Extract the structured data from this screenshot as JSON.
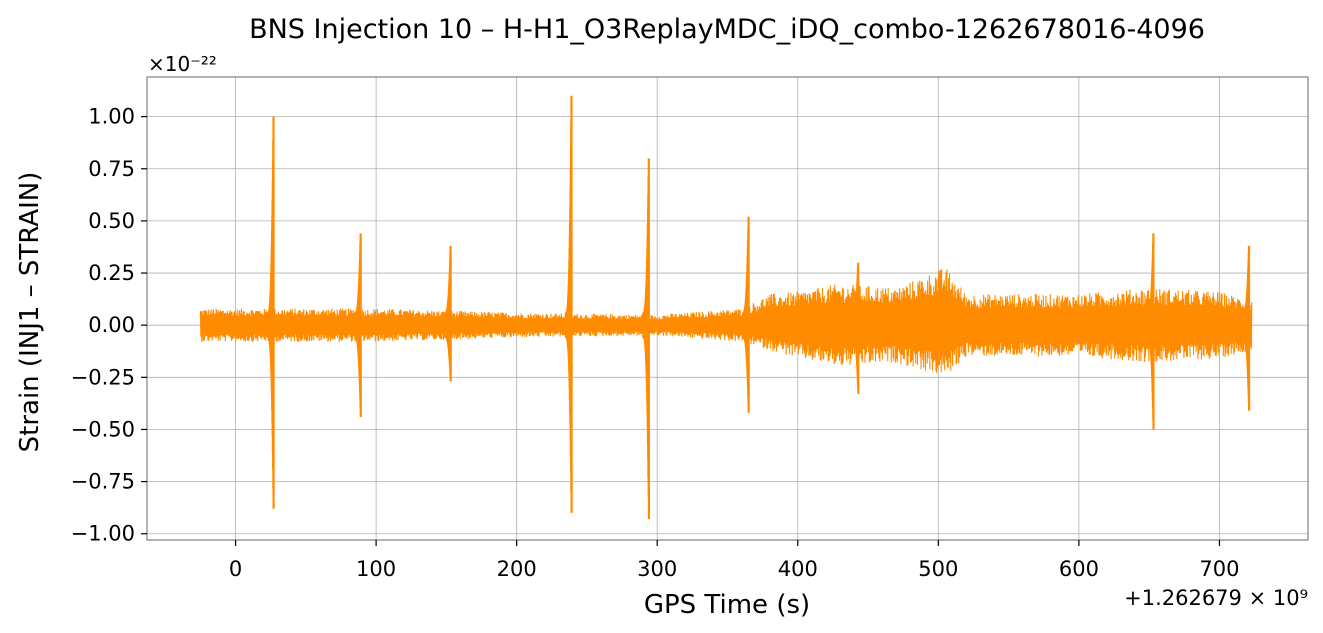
{
  "chart_data": {
    "type": "line",
    "title": "BNS Injection 10 – H-H1_O3ReplayMDC_iDQ_combo-1262678016-4096",
    "xlabel": "GPS Time (s)",
    "ylabel": "Strain (INJ1 – STRAIN)",
    "y_scale_label": "×10⁻²²",
    "x_offset_label": "+1.262679 × 10⁹",
    "x_ticks": [
      0,
      100,
      200,
      300,
      400,
      500,
      600,
      700
    ],
    "x_tick_labels": [
      "0",
      "100",
      "200",
      "300",
      "400",
      "500",
      "600",
      "700"
    ],
    "y_ticks": [
      1.0,
      0.75,
      0.5,
      0.25,
      0.0,
      -0.25,
      -0.5,
      -0.75,
      -1.0
    ],
    "y_tick_labels": [
      "1.00",
      "0.75",
      "0.50",
      "0.25",
      "0.00",
      "−0.25",
      "−0.50",
      "−0.75",
      "−1.00"
    ],
    "xlim": [
      -63,
      763
    ],
    "ylim": [
      -1.03,
      1.19
    ],
    "grid": true,
    "series": [
      {
        "color": "#ff8c00",
        "envelope": [
          {
            "x": -25,
            "upper": 0.08,
            "lower": -0.08
          },
          {
            "x": 100,
            "upper": 0.08,
            "lower": -0.08
          },
          {
            "x": 200,
            "upper": 0.06,
            "lower": -0.06
          },
          {
            "x": 300,
            "upper": 0.05,
            "lower": -0.05
          },
          {
            "x": 360,
            "upper": 0.08,
            "lower": -0.08
          },
          {
            "x": 380,
            "upper": 0.15,
            "lower": -0.12
          },
          {
            "x": 400,
            "upper": 0.16,
            "lower": -0.16
          },
          {
            "x": 430,
            "upper": 0.2,
            "lower": -0.2
          },
          {
            "x": 470,
            "upper": 0.18,
            "lower": -0.18
          },
          {
            "x": 505,
            "upper": 0.28,
            "lower": -0.25
          },
          {
            "x": 520,
            "upper": 0.15,
            "lower": -0.15
          },
          {
            "x": 600,
            "upper": 0.15,
            "lower": -0.15
          },
          {
            "x": 650,
            "upper": 0.18,
            "lower": -0.18
          },
          {
            "x": 700,
            "upper": 0.16,
            "lower": -0.16
          },
          {
            "x": 723,
            "upper": 0.12,
            "lower": -0.12
          }
        ],
        "spikes": [
          {
            "x": 27,
            "max": 1.0,
            "min": -0.88
          },
          {
            "x": 89,
            "max": 0.44,
            "min": -0.44
          },
          {
            "x": 153,
            "max": 0.38,
            "min": -0.27
          },
          {
            "x": 239,
            "max": 1.1,
            "min": -0.9
          },
          {
            "x": 294,
            "max": 0.8,
            "min": -0.93
          },
          {
            "x": 365,
            "max": 0.52,
            "min": -0.42
          },
          {
            "x": 443,
            "max": 0.3,
            "min": -0.33
          },
          {
            "x": 653,
            "max": 0.44,
            "min": -0.5
          },
          {
            "x": 721,
            "max": 0.38,
            "min": -0.41
          }
        ]
      }
    ]
  }
}
